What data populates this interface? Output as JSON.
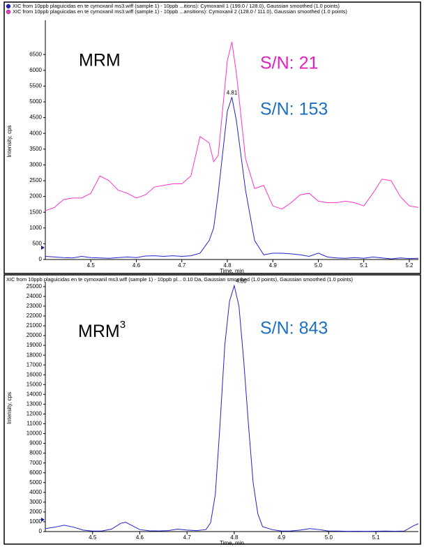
{
  "chart_data": [
    {
      "type": "line",
      "x_label": "Time, min",
      "y_label": "Intensity, cps",
      "annotations": [
        "MRM",
        "S/N: 21",
        "S/N: 153"
      ],
      "peak_label": {
        "label": "4.81",
        "x": 4.81,
        "y": 5150
      },
      "xlim": [
        4.4,
        5.22
      ],
      "ylim": [
        0,
        7500
      ],
      "xticks": [
        4.5,
        4.6,
        4.7,
        4.8,
        4.9,
        {
          "value": 5,
          "label": "5.0"
        },
        5.1,
        5.2
      ],
      "yticks": [
        0,
        500,
        1000,
        1500,
        2000,
        2500,
        3000,
        3500,
        4000,
        4500,
        5000,
        5500,
        6000,
        6500
      ],
      "x": [
        4.4,
        4.42,
        4.44,
        4.46,
        4.48,
        4.5,
        4.52,
        4.54,
        4.56,
        4.58,
        4.6,
        4.62,
        4.64,
        4.66,
        4.68,
        4.7,
        4.72,
        4.74,
        4.76,
        4.77,
        4.78,
        4.8,
        4.81,
        4.82,
        4.84,
        4.86,
        4.88,
        4.9,
        4.92,
        4.94,
        4.96,
        4.98,
        5.0,
        5.02,
        5.04,
        5.06,
        5.08,
        5.1,
        5.12,
        5.14,
        5.16,
        5.18,
        5.2,
        5.22
      ],
      "series": [
        {
          "name": "XIC from 10ppb plaguicidas en te cymoxanil ms3.wiff (sample 1) - 10ppb ...itions): Cymoxanil 1 (199.0 / 128.0), Gaussian smoothed (1.0 points)",
          "color": "#2222cc",
          "values": [
            100,
            80,
            60,
            50,
            100,
            60,
            50,
            40,
            60,
            80,
            60,
            110,
            120,
            100,
            120,
            100,
            120,
            200,
            600,
            1000,
            2100,
            4700,
            5150,
            4400,
            2200,
            600,
            150,
            200,
            200,
            180,
            150,
            100,
            200,
            80,
            50,
            40,
            60,
            40,
            80,
            50,
            20,
            50,
            30,
            40
          ]
        },
        {
          "name": "XIC from 10ppb plaguicidas en te cymoxanil ms3.wiff (sample 1) - 10ppb ...ansitions): Cymoxanil 2 (128.0 / 111.0), Gaussian smoothed (1.0 points)",
          "color": "#ff33cc",
          "values": [
            1550,
            1650,
            1900,
            1950,
            1950,
            2100,
            2650,
            2500,
            2200,
            2100,
            1950,
            2050,
            2300,
            2350,
            2400,
            2400,
            2650,
            3900,
            3700,
            3100,
            3300,
            6300,
            6900,
            5900,
            3200,
            2250,
            2350,
            1700,
            1600,
            1800,
            2050,
            2100,
            1850,
            1800,
            1800,
            1850,
            1800,
            1700,
            2100,
            2550,
            2500,
            2000,
            1700,
            1650
          ]
        }
      ]
    },
    {
      "type": "line",
      "x_label": "Time, min",
      "y_label": "Intensity, cps",
      "annotations": [
        "MRM",
        "3",
        "S/N: 843"
      ],
      "peak_label": {
        "label": "4.80",
        "x": 4.8,
        "y": 25100
      },
      "xlim": [
        4.4,
        5.19
      ],
      "ylim": [
        0,
        25200
      ],
      "xticks": [
        4.5,
        4.6,
        4.7,
        4.8,
        4.9,
        {
          "value": 5,
          "label": "5.0"
        },
        5.1
      ],
      "yticks": [
        0,
        1000,
        2000,
        3000,
        4000,
        5000,
        6000,
        7000,
        8000,
        9000,
        10000,
        11000,
        12000,
        13000,
        14000,
        15000,
        16000,
        17000,
        18000,
        19000,
        20000,
        21000,
        22000,
        23000,
        24000,
        25000
      ],
      "x": [
        4.4,
        4.42,
        4.44,
        4.46,
        4.48,
        4.5,
        4.52,
        4.54,
        4.56,
        4.57,
        4.58,
        4.6,
        4.62,
        4.64,
        4.66,
        4.68,
        4.7,
        4.72,
        4.74,
        4.75,
        4.76,
        4.77,
        4.78,
        4.79,
        4.8,
        4.81,
        4.82,
        4.83,
        4.84,
        4.85,
        4.86,
        4.88,
        4.9,
        4.92,
        4.94,
        4.96,
        4.98,
        5.0,
        5.02,
        5.04,
        5.06,
        5.08,
        5.1,
        5.12,
        5.14,
        5.16,
        5.18,
        5.19
      ],
      "series": [
        {
          "name": "XIC from 10ppb plaguicidas en te cymoxanil ms3.wiff (sample 1) - 10ppb pl... 0.10 Da, Gaussian smoothed (1.0 points), Gaussian smoothed (1.0 points)",
          "color": "#2222cc",
          "values": [
            300,
            450,
            650,
            450,
            150,
            50,
            60,
            250,
            850,
            950,
            700,
            200,
            80,
            60,
            100,
            250,
            150,
            100,
            200,
            900,
            3800,
            11000,
            19000,
            23500,
            25100,
            23000,
            17500,
            11000,
            5000,
            1800,
            500,
            200,
            50,
            60,
            150,
            300,
            200,
            50,
            50,
            30,
            40,
            30,
            40,
            50,
            40,
            50,
            600,
            800
          ]
        }
      ]
    }
  ]
}
